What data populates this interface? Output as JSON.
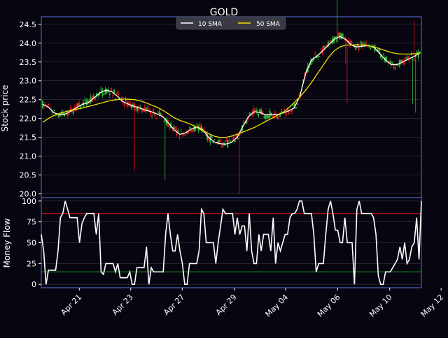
{
  "chart_data": [
    {
      "type": "candlestick",
      "title": "GOLD",
      "ylabel": "Stock price",
      "ylim": [
        19.9,
        24.7
      ],
      "yticks": [
        "20.0",
        "20.5",
        "21.0",
        "21.5",
        "22.0",
        "22.5",
        "23.0",
        "23.5",
        "24.0",
        "24.5"
      ],
      "grid": true,
      "legend_position": "top-center",
      "colors": {
        "up": "#2db92d",
        "down": "#e01414",
        "sma10": "#ffffff",
        "sma50": "#f0e000",
        "frame": "#5577dd",
        "background": "#07050f"
      },
      "series": [
        {
          "name": "10 SMA",
          "values": [
            22.38,
            22.3,
            22.15,
            22.1,
            22.12,
            22.2,
            22.3,
            22.38,
            22.42,
            22.55,
            22.68,
            22.75,
            22.72,
            22.6,
            22.45,
            22.38,
            22.32,
            22.28,
            22.22,
            22.18,
            22.12,
            22.05,
            21.88,
            21.7,
            21.58,
            21.62,
            21.72,
            21.78,
            21.7,
            21.5,
            21.38,
            21.33,
            21.32,
            21.36,
            21.5,
            21.78,
            22.05,
            22.18,
            22.16,
            22.1,
            22.1,
            22.1,
            22.15,
            22.2,
            22.28,
            22.6,
            23.2,
            23.55,
            23.66,
            23.8,
            23.95,
            24.1,
            24.18,
            24.1,
            23.95,
            23.9,
            23.92,
            23.94,
            23.88,
            23.72,
            23.55,
            23.43,
            23.43,
            23.5,
            23.58,
            23.65,
            23.74
          ]
        },
        {
          "name": "50 SMA",
          "values": [
            21.9,
            22.0,
            22.08,
            22.14,
            22.18,
            22.22,
            22.25,
            22.28,
            22.32,
            22.36,
            22.4,
            22.44,
            22.48,
            22.5,
            22.52,
            22.51,
            22.5,
            22.47,
            22.42,
            22.36,
            22.3,
            22.22,
            22.12,
            22.02,
            21.95,
            21.9,
            21.84,
            21.76,
            21.68,
            21.6,
            21.53,
            21.5,
            21.5,
            21.53,
            21.58,
            21.64,
            21.7,
            21.76,
            21.84,
            21.92,
            22.0,
            22.08,
            22.16,
            22.28,
            22.42,
            22.58,
            22.75,
            22.95,
            23.18,
            23.4,
            23.62,
            23.8,
            23.9,
            23.95,
            23.95,
            23.96,
            23.95,
            23.93,
            23.9,
            23.85,
            23.8,
            23.75,
            23.72,
            23.71,
            23.71,
            23.72,
            23.73
          ]
        }
      ]
    },
    {
      "type": "line",
      "ylabel": "Money Flow",
      "ylim": [
        -4,
        104
      ],
      "yticks": [
        "0",
        "25",
        "50",
        "75",
        "100"
      ],
      "thresholds": [
        {
          "value": 85,
          "color": "#e01414"
        },
        {
          "value": 15,
          "color": "#1aa01a"
        }
      ],
      "x_ticks": [
        "Apr 21",
        "Apr 23",
        "Apr 27",
        "Apr 29",
        "May 04",
        "May 06",
        "May 10",
        "May 12"
      ],
      "x_tick_index": [
        6.4,
        15.4,
        24.4,
        33.5,
        42.5,
        51.6,
        60.7,
        69.7
      ],
      "series": [
        {
          "name": "Money Flow",
          "values": [
            60,
            40,
            0,
            17,
            17,
            17,
            17,
            40,
            80,
            85,
            100,
            90,
            80,
            80,
            80,
            80,
            50,
            73,
            80,
            85,
            85,
            85,
            85,
            60,
            85,
            15,
            12,
            25,
            25,
            25,
            25,
            15,
            25,
            8,
            8,
            8,
            8,
            15,
            0,
            0,
            20,
            20,
            20,
            20,
            45,
            0,
            20,
            15,
            15,
            15,
            15,
            15,
            60,
            85,
            60,
            40,
            40,
            60,
            40,
            25,
            0,
            0,
            25,
            25,
            25,
            25,
            40,
            90,
            85,
            50,
            50,
            50,
            50,
            25,
            50,
            70,
            90,
            85,
            85,
            85,
            85,
            60,
            80,
            60,
            70,
            70,
            40,
            85,
            40,
            25,
            25,
            60,
            40,
            60,
            60,
            60,
            40,
            80,
            25,
            50,
            40,
            50,
            60,
            60,
            80,
            85,
            85,
            90,
            100,
            100,
            85,
            85,
            85,
            85,
            60,
            15,
            25,
            25,
            25,
            60,
            90,
            100,
            85,
            65,
            65,
            50,
            50,
            80,
            50,
            50,
            50,
            0,
            90,
            100,
            85,
            85,
            85,
            85,
            85,
            80,
            60,
            10,
            0,
            0,
            15,
            15,
            15,
            20,
            25,
            30,
            45,
            30,
            50,
            25,
            30,
            45,
            50,
            80,
            30,
            100
          ]
        }
      ]
    }
  ]
}
